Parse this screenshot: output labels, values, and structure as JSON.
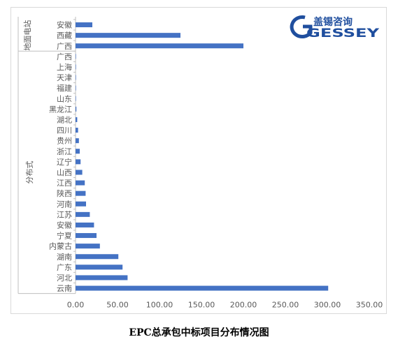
{
  "caption": "EPC总承包中标项目分布情况图",
  "logo": {
    "brand_cn": "盖锡咨询",
    "brand_en": "GESSEY"
  },
  "colors": {
    "bar": "#4472c4",
    "axis": "#bfbfbf",
    "text": "#595959",
    "logo_blue": "#1f4e9e",
    "logo_gray": "#9a9a9a"
  },
  "chart_data": {
    "type": "bar",
    "orientation": "horizontal",
    "xlim": [
      0,
      350
    ],
    "xticks": [
      "0.00",
      "50.00",
      "100.00",
      "150.00",
      "200.00",
      "250.00",
      "300.00",
      "350.00"
    ],
    "grid": false,
    "legend": "none",
    "groups": [
      {
        "label": "地面电站",
        "categories": [
          "安徽",
          "西藏",
          "广西"
        ],
        "values": [
          20,
          125,
          200
        ]
      },
      {
        "label": "分布式",
        "categories": [
          "广西",
          "上海",
          "天津",
          "福建",
          "山东",
          "黑龙江",
          "湖北",
          "四川",
          "贵州",
          "浙江",
          "辽宁",
          "山西",
          "江西",
          "陕西",
          "河南",
          "江苏",
          "安徽",
          "宁夏",
          "内蒙古",
          "湖南",
          "广东",
          "河北",
          "云南"
        ],
        "values": [
          0.2,
          0.3,
          0.3,
          0.4,
          0.5,
          1,
          2,
          3,
          4,
          5,
          6,
          8,
          11,
          12,
          12.5,
          17,
          22,
          25,
          29,
          51,
          56,
          62,
          301
        ]
      }
    ]
  }
}
